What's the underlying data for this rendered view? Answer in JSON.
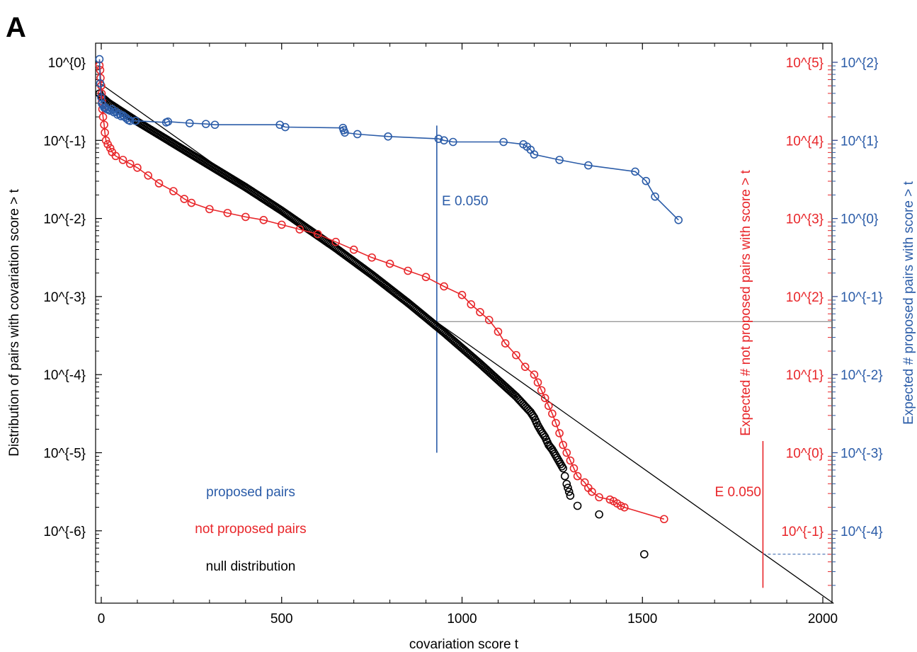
{
  "chart_data": {
    "type": "scatter",
    "panel_label": "A",
    "xlabel": "covariation score t",
    "ylabel": "Distribution of pairs with covariation score > t",
    "y2label_red": "Expected # not proposed pairs with score > t",
    "y2label_blue": "Expected # proposed pairs with score > t",
    "xlim": [
      -10,
      2030
    ],
    "ylim_log10": [
      -6.93,
      0.32
    ],
    "y_scale": "log",
    "x_ticks": [
      0,
      500,
      1000,
      1500,
      2000
    ],
    "x_tick_labels": [
      "0",
      "500",
      "1000",
      "1500",
      "2000"
    ],
    "y_ticks_log10": [
      0,
      -1,
      -2,
      -3,
      -4,
      -5,
      -6
    ],
    "y_tick_labels": [
      "10^{0}",
      "10^{-1}",
      "10^{-2}",
      "10^{-3}",
      "10^{-4}",
      "10^{-5}",
      "10^{-6}"
    ],
    "red_axis_ticks_log10": [
      5,
      4,
      3,
      2,
      1,
      0,
      -1
    ],
    "red_axis_tick_labels": [
      "10^{5}",
      "10^{4}",
      "10^{3}",
      "10^{2}",
      "10^{1}",
      "10^{0}",
      "10^{-1}"
    ],
    "red_axis_offset_log10": 5,
    "blue_axis_ticks_log10": [
      2,
      1,
      0,
      -1,
      -2,
      -3,
      -4
    ],
    "blue_axis_tick_labels": [
      "10^{2}",
      "10^{1}",
      "10^{0}",
      "10^{-1}",
      "10^{-2}",
      "10^{-3}",
      "10^{-4}"
    ],
    "blue_axis_offset_log10": 2,
    "colors": {
      "blue": "#2b5ca8",
      "red": "#e8262a",
      "black": "#000000",
      "grey": "#777777"
    },
    "legend": [
      {
        "label": "proposed pairs",
        "color": "#2b5ca8"
      },
      {
        "label": "not proposed pairs",
        "color": "#e8262a"
      },
      {
        "label": "null distribution",
        "color": "#000000"
      }
    ],
    "annotations": {
      "blue_threshold": {
        "label": "E 0.050",
        "x": 930,
        "y_log10_top": -0.81,
        "y_log10_bottom": -5.0
      },
      "red_threshold": {
        "label": "E 0.050",
        "x": 1834,
        "y_log10_top": -4.85,
        "y_log10_bottom": -6.73
      },
      "grey_hline": {
        "y_log10": -3.32,
        "x_from": 930
      },
      "blue_dashed_hline": {
        "y_log10": -6.3,
        "x_from": 1834
      },
      "fit_line": {
        "x0": 0,
        "y0_log10": -0.28,
        "x1": 2030,
        "y1_log10": -6.93
      }
    },
    "series": [
      {
        "name": "proposed pairs",
        "color": "#2b5ca8",
        "connected": true,
        "x": [
          -5,
          -3,
          0,
          2,
          5,
          8,
          12,
          15,
          20,
          25,
          30,
          35,
          40,
          45,
          50,
          55,
          60,
          65,
          70,
          75,
          80,
          95,
          180,
          185,
          245,
          290,
          315,
          495,
          510,
          670,
          672,
          675,
          710,
          795,
          935,
          950,
          975,
          1115,
          1170,
          1180,
          1190,
          1200,
          1270,
          1350,
          1480,
          1510,
          1535,
          1600
        ],
        "y_log10": [
          0.04,
          -0.27,
          -0.45,
          -0.53,
          -0.55,
          -0.58,
          -0.58,
          -0.6,
          -0.61,
          -0.62,
          -0.6,
          -0.64,
          -0.63,
          -0.67,
          -0.66,
          -0.69,
          -0.68,
          -0.7,
          -0.72,
          -0.74,
          -0.75,
          -0.75,
          -0.77,
          -0.76,
          -0.78,
          -0.79,
          -0.8,
          -0.8,
          -0.83,
          -0.84,
          -0.87,
          -0.9,
          -0.92,
          -0.95,
          -0.98,
          -1.0,
          -1.02,
          -1.02,
          -1.05,
          -1.08,
          -1.12,
          -1.18,
          -1.25,
          -1.32,
          -1.4,
          -1.52,
          -1.72,
          -2.02
        ]
      },
      {
        "name": "not proposed pairs",
        "color": "#e8262a",
        "connected": true,
        "x": [
          -5,
          -3,
          -2,
          0,
          1,
          2,
          3,
          5,
          8,
          10,
          13,
          18,
          25,
          30,
          40,
          60,
          80,
          100,
          130,
          160,
          200,
          230,
          250,
          300,
          350,
          400,
          450,
          500,
          550,
          600,
          650,
          700,
          750,
          800,
          850,
          900,
          950,
          1000,
          1025,
          1050,
          1075,
          1100,
          1120,
          1150,
          1175,
          1200,
          1210,
          1220,
          1230,
          1240,
          1250,
          1260,
          1270,
          1280,
          1290,
          1300,
          1310,
          1320,
          1340,
          1350,
          1360,
          1380,
          1410,
          1420,
          1430,
          1440,
          1450,
          1560
        ],
        "y_log10": [
          -0.04,
          -0.1,
          -0.2,
          -0.3,
          -0.4,
          -0.5,
          -0.6,
          -0.7,
          -0.8,
          -0.9,
          -1.0,
          -1.05,
          -1.1,
          -1.15,
          -1.2,
          -1.25,
          -1.3,
          -1.35,
          -1.45,
          -1.55,
          -1.65,
          -1.75,
          -1.8,
          -1.88,
          -1.93,
          -1.98,
          -2.02,
          -2.08,
          -2.14,
          -2.2,
          -2.3,
          -2.4,
          -2.5,
          -2.58,
          -2.67,
          -2.75,
          -2.87,
          -2.98,
          -3.1,
          -3.2,
          -3.3,
          -3.45,
          -3.6,
          -3.75,
          -3.9,
          -4.0,
          -4.1,
          -4.2,
          -4.3,
          -4.4,
          -4.5,
          -4.62,
          -4.75,
          -4.9,
          -5.0,
          -5.1,
          -5.2,
          -5.3,
          -5.38,
          -5.45,
          -5.5,
          -5.57,
          -5.6,
          -5.62,
          -5.65,
          -5.68,
          -5.7,
          -5.85
        ]
      },
      {
        "name": "null distribution",
        "color": "#000000",
        "connected": false,
        "x": [
          -5,
          0,
          10,
          20,
          40,
          60,
          80,
          100,
          150,
          200,
          250,
          300,
          350,
          400,
          450,
          500,
          550,
          600,
          650,
          700,
          750,
          800,
          850,
          900,
          950,
          1000,
          1050,
          1100,
          1150,
          1170,
          1190,
          1200,
          1210,
          1220,
          1230,
          1240,
          1250,
          1260,
          1270,
          1280,
          1285,
          1290,
          1300,
          1320,
          1380,
          1505
        ],
        "y_log10": [
          -0.4,
          -0.44,
          -0.48,
          -0.52,
          -0.58,
          -0.64,
          -0.7,
          -0.76,
          -0.9,
          -1.04,
          -1.18,
          -1.32,
          -1.46,
          -1.6,
          -1.75,
          -1.9,
          -2.06,
          -2.22,
          -2.38,
          -2.55,
          -2.72,
          -2.9,
          -3.08,
          -3.27,
          -3.46,
          -3.66,
          -3.86,
          -4.07,
          -4.28,
          -4.38,
          -4.48,
          -4.55,
          -4.65,
          -4.73,
          -4.8,
          -4.9,
          -4.96,
          -5.04,
          -5.12,
          -5.2,
          -5.3,
          -5.4,
          -5.55,
          -5.68,
          -5.79,
          -6.3
        ]
      }
    ]
  }
}
